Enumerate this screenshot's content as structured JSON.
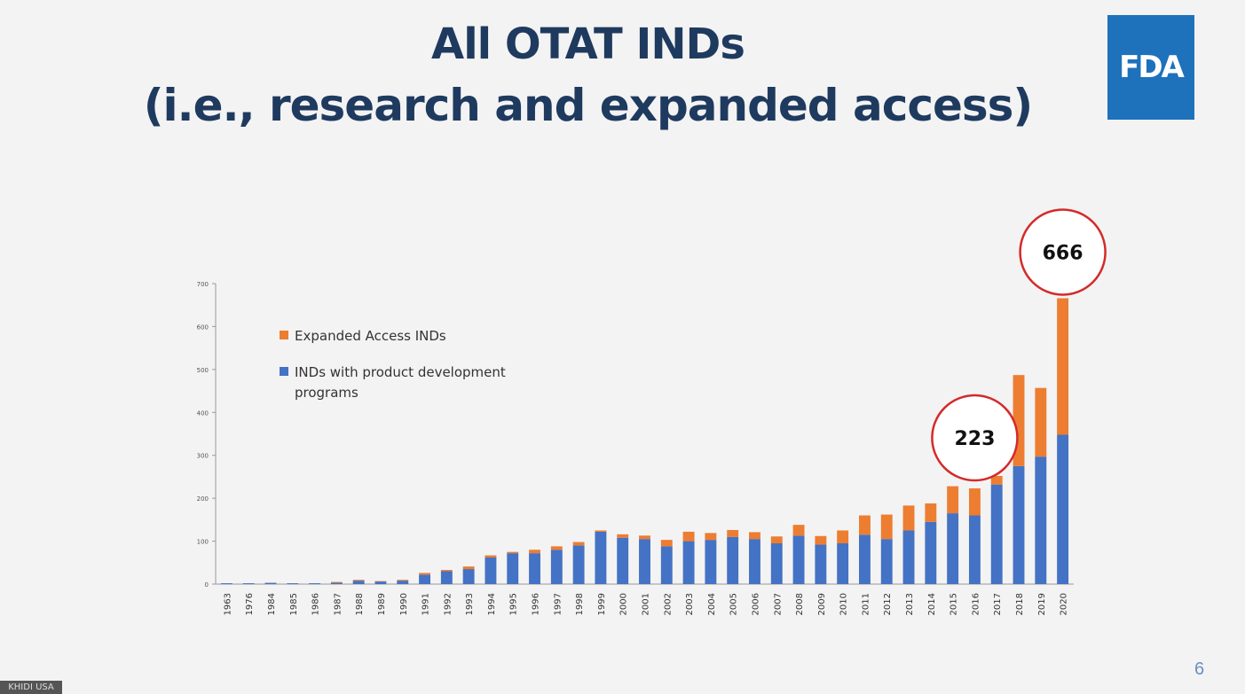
{
  "slide": {
    "title_line1": "All OTAT INDs",
    "title_line2": "(i.e., research and expanded access)",
    "logo_text": "FDA",
    "page_number": "6",
    "watermark": "KHIDI USA"
  },
  "chart_data": {
    "type": "bar",
    "stacked": true,
    "categories": [
      "1963",
      "1976",
      "1984",
      "1985",
      "1986",
      "1987",
      "1988",
      "1989",
      "1990",
      "1991",
      "1992",
      "1993",
      "1994",
      "1995",
      "1996",
      "1997",
      "1998",
      "1999",
      "2000",
      "2001",
      "2002",
      "2003",
      "2004",
      "2005",
      "2006",
      "2007",
      "2008",
      "2009",
      "2010",
      "2011",
      "2012",
      "2013",
      "2014",
      "2015",
      "2016",
      "2017",
      "2018",
      "2019",
      "2020"
    ],
    "series": [
      {
        "name": "INDs with product development programs",
        "color": "#4472c4",
        "values": [
          2,
          2,
          3,
          2,
          2,
          3,
          8,
          6,
          8,
          22,
          30,
          35,
          62,
          72,
          72,
          80,
          90,
          122,
          108,
          105,
          88,
          100,
          103,
          110,
          105,
          95,
          113,
          92,
          95,
          115,
          105,
          125,
          145,
          165,
          160,
          232,
          275,
          297,
          348
        ]
      },
      {
        "name": "Expanded Access INDs",
        "color": "#ed7d31",
        "values": [
          0,
          0,
          0,
          0,
          0,
          2,
          2,
          1,
          2,
          4,
          3,
          6,
          5,
          3,
          8,
          8,
          8,
          3,
          8,
          8,
          15,
          22,
          16,
          16,
          16,
          16,
          25,
          20,
          30,
          45,
          57,
          58,
          43,
          63,
          63,
          20,
          212,
          160,
          318
        ]
      }
    ],
    "ylim": [
      0,
      700
    ],
    "yticks": [
      "0",
      "100",
      "200",
      "300",
      "400",
      "500",
      "600",
      "700"
    ],
    "legend_position": "top-left",
    "annotations": [
      {
        "label": "223",
        "category": "2016"
      },
      {
        "label": "666",
        "category": "2020"
      }
    ]
  }
}
